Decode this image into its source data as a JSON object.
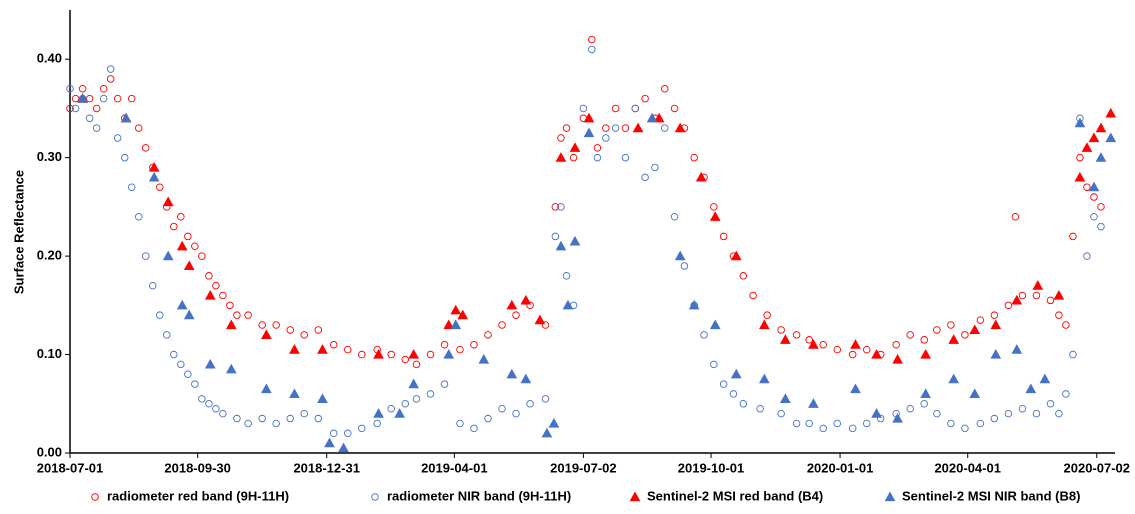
{
  "chart_data": {
    "type": "scatter",
    "y_label": "Surface Reflectance",
    "xlim": [
      "2018-07-01",
      "2020-07-15"
    ],
    "xticks": [
      "2018-07-01",
      "2018-09-30",
      "2018-12-31",
      "2019-04-01",
      "2019-07-02",
      "2019-10-01",
      "2020-01-01",
      "2020-04-01",
      "2020-07-02"
    ],
    "ylim": [
      0,
      0.45
    ],
    "yticks": [
      {
        "value": 0,
        "label": "0.00"
      },
      {
        "value": 0.1,
        "label": "0.10"
      },
      {
        "value": 0.2,
        "label": "0.20"
      },
      {
        "value": 0.3,
        "label": "0.30"
      },
      {
        "value": 0.4,
        "label": "0.40"
      }
    ],
    "legend": "bottom",
    "series": [
      {
        "name": "radiometer red band (9H-11H)",
        "color": "#ff0000",
        "marker": "circle",
        "filled": false,
        "x": [
          "2018-07-01",
          "2018-07-05",
          "2018-07-10",
          "2018-07-15",
          "2018-07-20",
          "2018-07-25",
          "2018-07-30",
          "2018-08-04",
          "2018-08-09",
          "2018-08-14",
          "2018-08-19",
          "2018-08-24",
          "2018-08-29",
          "2018-09-03",
          "2018-09-08",
          "2018-09-13",
          "2018-09-18",
          "2018-09-23",
          "2018-09-28",
          "2018-10-03",
          "2018-10-08",
          "2018-10-13",
          "2018-10-18",
          "2018-10-23",
          "2018-10-28",
          "2018-11-05",
          "2018-11-15",
          "2018-11-25",
          "2018-12-05",
          "2018-12-15",
          "2018-12-25",
          "2019-01-05",
          "2019-01-15",
          "2019-01-25",
          "2019-02-05",
          "2019-02-15",
          "2019-02-25",
          "2019-03-05",
          "2019-03-15",
          "2019-03-25",
          "2019-04-05",
          "2019-04-15",
          "2019-04-25",
          "2019-05-05",
          "2019-05-15",
          "2019-05-25",
          "2019-06-05",
          "2019-06-12",
          "2019-06-16",
          "2019-06-20",
          "2019-06-25",
          "2019-07-02",
          "2019-07-08",
          "2019-07-12",
          "2019-07-18",
          "2019-07-25",
          "2019-08-01",
          "2019-08-08",
          "2019-08-15",
          "2019-08-22",
          "2019-08-29",
          "2019-09-05",
          "2019-09-12",
          "2019-09-19",
          "2019-09-26",
          "2019-10-03",
          "2019-10-10",
          "2019-10-17",
          "2019-10-24",
          "2019-10-31",
          "2019-11-10",
          "2019-11-20",
          "2019-12-01",
          "2019-12-10",
          "2019-12-20",
          "2019-12-30",
          "2020-01-10",
          "2020-01-20",
          "2020-01-30",
          "2020-02-10",
          "2020-02-20",
          "2020-03-01",
          "2020-03-10",
          "2020-03-20",
          "2020-03-30",
          "2020-04-10",
          "2020-04-20",
          "2020-04-30",
          "2020-05-05",
          "2020-05-10",
          "2020-05-20",
          "2020-05-30",
          "2020-06-05",
          "2020-06-10",
          "2020-06-15",
          "2020-06-20",
          "2020-06-25",
          "2020-06-30",
          "2020-07-05"
        ],
        "values": [
          0.35,
          0.36,
          0.37,
          0.36,
          0.35,
          0.37,
          0.38,
          0.36,
          0.34,
          0.36,
          0.33,
          0.31,
          0.29,
          0.27,
          0.25,
          0.23,
          0.24,
          0.22,
          0.21,
          0.2,
          0.18,
          0.17,
          0.16,
          0.15,
          0.14,
          0.14,
          0.13,
          0.13,
          0.125,
          0.12,
          0.125,
          0.11,
          0.105,
          0.1,
          0.105,
          0.1,
          0.095,
          0.09,
          0.1,
          0.11,
          0.105,
          0.11,
          0.12,
          0.13,
          0.14,
          0.15,
          0.13,
          0.25,
          0.32,
          0.33,
          0.3,
          0.34,
          0.42,
          0.31,
          0.33,
          0.35,
          0.33,
          0.35,
          0.36,
          0.34,
          0.37,
          0.35,
          0.33,
          0.3,
          0.28,
          0.25,
          0.22,
          0.2,
          0.18,
          0.16,
          0.14,
          0.125,
          0.12,
          0.115,
          0.11,
          0.105,
          0.1,
          0.105,
          0.1,
          0.11,
          0.12,
          0.115,
          0.125,
          0.13,
          0.12,
          0.135,
          0.14,
          0.15,
          0.24,
          0.16,
          0.16,
          0.155,
          0.14,
          0.13,
          0.22,
          0.3,
          0.27,
          0.26,
          0.25
        ]
      },
      {
        "name": "radiometer NIR band (9H-11H)",
        "color": "#4472c4",
        "marker": "circle",
        "filled": false,
        "x": [
          "2018-07-01",
          "2018-07-05",
          "2018-07-10",
          "2018-07-15",
          "2018-07-20",
          "2018-07-25",
          "2018-07-30",
          "2018-08-04",
          "2018-08-09",
          "2018-08-14",
          "2018-08-19",
          "2018-08-24",
          "2018-08-29",
          "2018-09-03",
          "2018-09-08",
          "2018-09-13",
          "2018-09-18",
          "2018-09-23",
          "2018-09-28",
          "2018-10-03",
          "2018-10-08",
          "2018-10-13",
          "2018-10-18",
          "2018-10-28",
          "2018-11-05",
          "2018-11-15",
          "2018-11-25",
          "2018-12-05",
          "2018-12-15",
          "2018-12-25",
          "2019-01-05",
          "2019-01-15",
          "2019-01-25",
          "2019-02-05",
          "2019-02-15",
          "2019-02-25",
          "2019-03-05",
          "2019-03-15",
          "2019-03-25",
          "2019-04-05",
          "2019-04-15",
          "2019-04-25",
          "2019-05-05",
          "2019-05-15",
          "2019-05-25",
          "2019-06-05",
          "2019-06-12",
          "2019-06-16",
          "2019-06-20",
          "2019-06-25",
          "2019-07-02",
          "2019-07-08",
          "2019-07-12",
          "2019-07-18",
          "2019-07-25",
          "2019-08-01",
          "2019-08-08",
          "2019-08-15",
          "2019-08-22",
          "2019-08-29",
          "2019-09-05",
          "2019-09-12",
          "2019-09-19",
          "2019-09-26",
          "2019-10-03",
          "2019-10-10",
          "2019-10-17",
          "2019-10-24",
          "2019-11-05",
          "2019-11-20",
          "2019-12-01",
          "2019-12-10",
          "2019-12-20",
          "2019-12-30",
          "2020-01-10",
          "2020-01-20",
          "2020-01-30",
          "2020-02-10",
          "2020-02-20",
          "2020-03-01",
          "2020-03-10",
          "2020-03-20",
          "2020-03-30",
          "2020-04-10",
          "2020-04-20",
          "2020-04-30",
          "2020-05-10",
          "2020-05-20",
          "2020-05-30",
          "2020-06-05",
          "2020-06-10",
          "2020-06-15",
          "2020-06-20",
          "2020-06-25",
          "2020-06-30",
          "2020-07-05"
        ],
        "values": [
          0.37,
          0.35,
          0.36,
          0.34,
          0.33,
          0.36,
          0.39,
          0.32,
          0.3,
          0.27,
          0.24,
          0.2,
          0.17,
          0.14,
          0.12,
          0.1,
          0.09,
          0.08,
          0.07,
          0.055,
          0.05,
          0.045,
          0.04,
          0.035,
          0.03,
          0.035,
          0.03,
          0.035,
          0.04,
          0.035,
          0.02,
          0.02,
          0.025,
          0.03,
          0.045,
          0.05,
          0.055,
          0.06,
          0.07,
          0.03,
          0.025,
          0.035,
          0.045,
          0.04,
          0.05,
          0.055,
          0.22,
          0.25,
          0.18,
          0.15,
          0.35,
          0.41,
          0.3,
          0.32,
          0.33,
          0.3,
          0.35,
          0.28,
          0.29,
          0.33,
          0.24,
          0.19,
          0.15,
          0.12,
          0.09,
          0.07,
          0.06,
          0.05,
          0.045,
          0.04,
          0.03,
          0.03,
          0.025,
          0.03,
          0.025,
          0.03,
          0.035,
          0.04,
          0.045,
          0.05,
          0.04,
          0.03,
          0.025,
          0.03,
          0.035,
          0.04,
          0.045,
          0.04,
          0.05,
          0.04,
          0.06,
          0.1,
          0.34,
          0.2,
          0.24,
          0.23
        ]
      },
      {
        "name": "Sentinel-2 MSI red band (B4)",
        "color": "#ff0000",
        "marker": "triangle",
        "filled": true,
        "x": [
          "2018-07-10",
          "2018-08-10",
          "2018-08-30",
          "2018-09-09",
          "2018-09-19",
          "2018-09-24",
          "2018-10-09",
          "2018-10-24",
          "2018-11-18",
          "2018-12-08",
          "2018-12-28",
          "2019-02-06",
          "2019-03-03",
          "2019-03-28",
          "2019-04-02",
          "2019-04-07",
          "2019-05-12",
          "2019-05-22",
          "2019-06-01",
          "2019-06-16",
          "2019-06-26",
          "2019-07-06",
          "2019-08-10",
          "2019-08-25",
          "2019-09-09",
          "2019-09-24",
          "2019-10-04",
          "2019-10-19",
          "2019-11-08",
          "2019-11-23",
          "2019-12-13",
          "2020-01-12",
          "2020-01-27",
          "2020-02-11",
          "2020-03-02",
          "2020-03-22",
          "2020-04-06",
          "2020-04-21",
          "2020-05-06",
          "2020-05-21",
          "2020-06-05",
          "2020-06-20",
          "2020-06-25",
          "2020-06-30",
          "2020-07-05",
          "2020-07-12"
        ],
        "values": [
          0.36,
          0.34,
          0.29,
          0.255,
          0.21,
          0.19,
          0.16,
          0.13,
          0.12,
          0.105,
          0.105,
          0.1,
          0.1,
          0.13,
          0.145,
          0.14,
          0.15,
          0.155,
          0.135,
          0.3,
          0.31,
          0.34,
          0.33,
          0.34,
          0.33,
          0.28,
          0.24,
          0.2,
          0.13,
          0.115,
          0.11,
          0.11,
          0.1,
          0.095,
          0.1,
          0.115,
          0.125,
          0.13,
          0.155,
          0.17,
          0.16,
          0.28,
          0.31,
          0.32,
          0.33,
          0.345
        ]
      },
      {
        "name": "Sentinel-2 MSI NIR band (B8)",
        "color": "#4472c4",
        "marker": "triangle",
        "filled": true,
        "x": [
          "2018-07-10",
          "2018-08-10",
          "2018-08-30",
          "2018-09-09",
          "2018-09-19",
          "2018-09-24",
          "2018-10-09",
          "2018-10-24",
          "2018-11-18",
          "2018-12-08",
          "2018-12-28",
          "2019-01-02",
          "2019-01-12",
          "2019-02-06",
          "2019-02-21",
          "2019-03-03",
          "2019-03-28",
          "2019-04-02",
          "2019-04-22",
          "2019-05-12",
          "2019-05-22",
          "2019-06-06",
          "2019-06-11",
          "2019-06-16",
          "2019-06-21",
          "2019-06-26",
          "2019-07-06",
          "2019-08-20",
          "2019-09-09",
          "2019-09-19",
          "2019-10-04",
          "2019-10-19",
          "2019-11-08",
          "2019-11-23",
          "2019-12-13",
          "2020-01-12",
          "2020-01-27",
          "2020-02-11",
          "2020-03-02",
          "2020-03-22",
          "2020-04-06",
          "2020-04-21",
          "2020-05-06",
          "2020-05-16",
          "2020-05-26",
          "2020-06-20",
          "2020-06-30",
          "2020-07-05",
          "2020-07-12"
        ],
        "values": [
          0.36,
          0.34,
          0.28,
          0.2,
          0.15,
          0.14,
          0.09,
          0.085,
          0.065,
          0.06,
          0.055,
          0.01,
          0.005,
          0.04,
          0.04,
          0.07,
          0.1,
          0.13,
          0.095,
          0.08,
          0.075,
          0.02,
          0.03,
          0.21,
          0.15,
          0.215,
          0.325,
          0.34,
          0.2,
          0.15,
          0.13,
          0.08,
          0.075,
          0.055,
          0.05,
          0.065,
          0.04,
          0.035,
          0.06,
          0.075,
          0.06,
          0.1,
          0.105,
          0.065,
          0.075,
          0.335,
          0.27,
          0.3,
          0.32
        ]
      }
    ]
  }
}
